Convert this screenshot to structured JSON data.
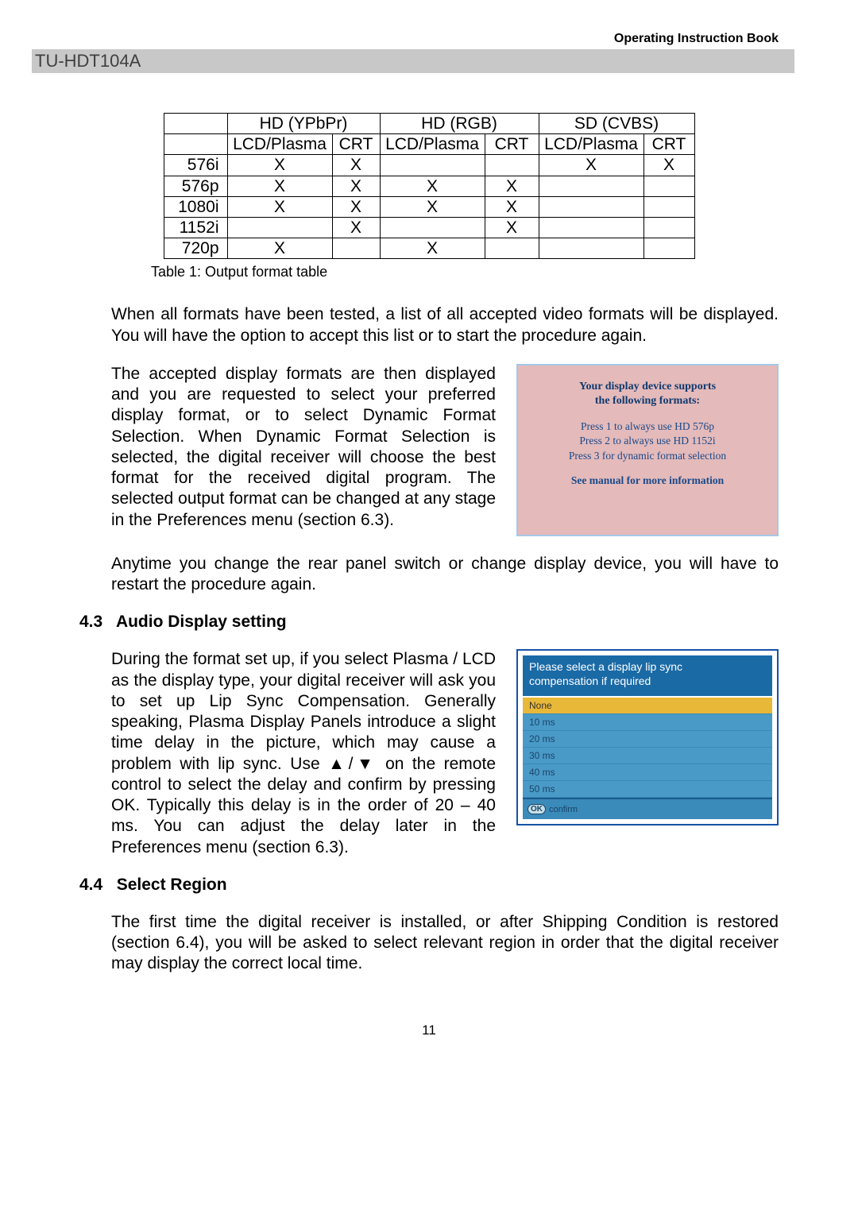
{
  "header_right": "Operating Instruction Book",
  "model": "TU-HDT104A",
  "table": {
    "group_headers": [
      "HD (YPbPr)",
      "HD (RGB)",
      "SD (CVBS)"
    ],
    "sub_headers": [
      "LCD/Plasma",
      "CRT",
      "LCD/Plasma",
      "CRT",
      "LCD/Plasma",
      "CRT"
    ],
    "rows": [
      {
        "label": "576i",
        "cells": [
          "X",
          "X",
          "",
          "",
          "X",
          "X"
        ]
      },
      {
        "label": "576p",
        "cells": [
          "X",
          "X",
          "X",
          "X",
          "",
          ""
        ]
      },
      {
        "label": "1080i",
        "cells": [
          "X",
          "X",
          "X",
          "X",
          "",
          ""
        ]
      },
      {
        "label": "1152i",
        "cells": [
          "",
          "X",
          "",
          "X",
          "",
          ""
        ]
      },
      {
        "label": "720p",
        "cells": [
          "X",
          "",
          "X",
          "",
          "",
          ""
        ]
      }
    ],
    "caption": "Table 1: Output format table",
    "col_widths": [
      "80px",
      "132px",
      "60px",
      "132px",
      "68px",
      "132px",
      "64px"
    ]
  },
  "para_after_table": "When all formats have been tested, a list of all accepted video formats will be displayed.  You will have the option to accept this list or to start the procedure again.",
  "para_2col_1": "The accepted display formats are then displayed and you are requested to select your preferred display format, or to select Dynamic Format Selection.  When Dynamic Format Selection is selected, the digital receiver will choose the best format for the received digital program.  The selected output format can be changed at any stage in the Preferences menu (section 6.3).",
  "osd1": {
    "title_l1": "Your display device supports",
    "title_l2": "the following formats:",
    "line1": "Press 1 to always use HD 576p",
    "line2": "Press 2 to always use HD 1152i",
    "line3": "Press 3 for dynamic format selection",
    "see": "See manual for more information"
  },
  "para_restart": " Anytime you change the rear panel switch or change display device, you will have to restart the procedure again.",
  "sec43_num": "4.3",
  "sec43_title": "Audio Display setting",
  "para_43": "During the format set up, if you select Plasma / LCD as the display type, your digital receiver will ask you to set up Lip Sync Compensation.  Generally speaking, Plasma Display Panels introduce a slight time delay in the picture, which may cause a problem with lip sync.  Use ▲/▼ on the remote control to select the delay and confirm by pressing OK.   Typically this delay is in the order of 20 – 40 ms.  You can adjust the delay later in the Preferences menu (section 6.3).",
  "osd2": {
    "title_l1": "Please select a display lip sync",
    "title_l2": "compensation if required",
    "options": [
      "None",
      "10 ms",
      "20 ms",
      "30 ms",
      "40 ms",
      "50 ms"
    ],
    "selected_index": 0,
    "ok_label": "OK",
    "footer_text": "confirm"
  },
  "sec44_num": "4.4",
  "sec44_title": "Select Region",
  "para_44": "The first time the digital receiver is installed, or after Shipping Condition is restored (section 6.4), you will be asked to select relevant region in order that the digital receiver may display the correct local time.",
  "page_number": "11"
}
